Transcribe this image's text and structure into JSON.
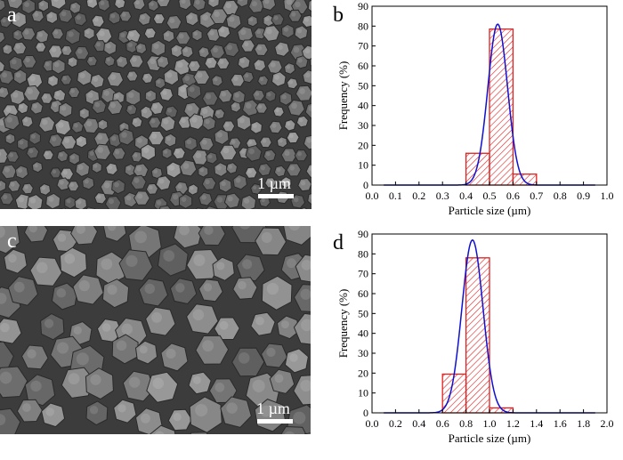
{
  "panels": [
    {
      "letter": "a",
      "scale_label": "1 µm"
    },
    {
      "letter": "c",
      "scale_label": "1 µm"
    }
  ],
  "chart_data": [
    {
      "type": "bar",
      "panel_letter": "b",
      "xlabel": "Particle size (µm)",
      "ylabel": "Frequency (%)",
      "xlim": [
        0.0,
        1.0
      ],
      "ylim": [
        0,
        90
      ],
      "xticks": [
        0.0,
        0.1,
        0.2,
        0.3,
        0.4,
        0.5,
        0.6,
        0.7,
        0.8,
        0.9,
        1.0
      ],
      "yticks": [
        0,
        10,
        20,
        30,
        40,
        50,
        60,
        70,
        80,
        90
      ],
      "bins": [
        {
          "x0": 0.4,
          "x1": 0.5,
          "value": 16
        },
        {
          "x0": 0.5,
          "x1": 0.6,
          "value": 78.5
        },
        {
          "x0": 0.6,
          "x1": 0.7,
          "value": 5.5
        }
      ],
      "fit": {
        "type": "gaussian",
        "center": 0.535,
        "sigma": 0.042,
        "peak": 81,
        "x_range": [
          0.05,
          0.95
        ]
      },
      "bar_color": "#e02020",
      "fit_color": "#1010d0"
    },
    {
      "type": "bar",
      "panel_letter": "d",
      "xlabel": "Particle size (µm)",
      "ylabel": "Frequency (%)",
      "xlim": [
        0.0,
        2.0
      ],
      "ylim": [
        0,
        90
      ],
      "xticks": [
        0.0,
        0.2,
        0.4,
        0.6,
        0.8,
        1.0,
        1.2,
        1.4,
        1.6,
        1.8,
        2.0
      ],
      "yticks": [
        0,
        10,
        20,
        30,
        40,
        50,
        60,
        70,
        80,
        90
      ],
      "bins": [
        {
          "x0": 0.6,
          "x1": 0.8,
          "value": 19.5
        },
        {
          "x0": 0.8,
          "x1": 1.0,
          "value": 78
        },
        {
          "x0": 1.0,
          "x1": 1.2,
          "value": 2.5
        }
      ],
      "fit": {
        "type": "gaussian",
        "center": 0.855,
        "sigma": 0.09,
        "peak": 87,
        "x_range": [
          0.1,
          1.9
        ]
      },
      "bar_color": "#e02020",
      "fit_color": "#1010d0"
    }
  ]
}
